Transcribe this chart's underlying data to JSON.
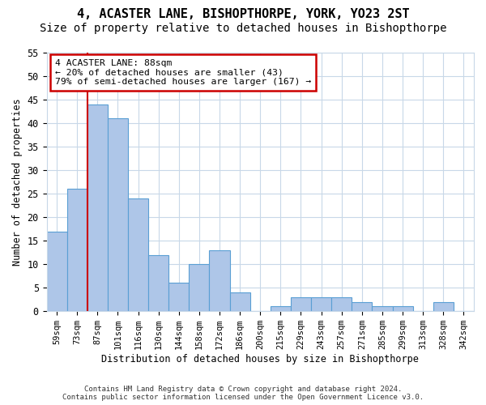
{
  "title": "4, ACASTER LANE, BISHOPTHORPE, YORK, YO23 2ST",
  "subtitle": "Size of property relative to detached houses in Bishopthorpe",
  "xlabel": "Distribution of detached houses by size in Bishopthorpe",
  "ylabel": "Number of detached properties",
  "footer1": "Contains HM Land Registry data © Crown copyright and database right 2024.",
  "footer2": "Contains public sector information licensed under the Open Government Licence v3.0.",
  "categories": [
    "59sqm",
    "73sqm",
    "87sqm",
    "101sqm",
    "116sqm",
    "130sqm",
    "144sqm",
    "158sqm",
    "172sqm",
    "186sqm",
    "200sqm",
    "215sqm",
    "229sqm",
    "243sqm",
    "257sqm",
    "271sqm",
    "285sqm",
    "299sqm",
    "313sqm",
    "328sqm",
    "342sqm"
  ],
  "values": [
    17,
    26,
    44,
    41,
    24,
    12,
    6,
    10,
    13,
    4,
    0,
    1,
    3,
    3,
    3,
    2,
    1,
    1,
    0,
    2,
    0
  ],
  "bar_color": "#aec6e8",
  "bar_edge_color": "#5a9fd4",
  "property_line_label": "4 ACASTER LANE: 88sqm",
  "annotation_line1": "← 20% of detached houses are smaller (43)",
  "annotation_line2": "79% of semi-detached houses are larger (167) →",
  "annotation_box_color": "#ffffff",
  "annotation_box_edge": "#cc0000",
  "line_color": "#cc0000",
  "line_bar_index": 2,
  "ylim": [
    0,
    55
  ],
  "yticks": [
    0,
    5,
    10,
    15,
    20,
    25,
    30,
    35,
    40,
    45,
    50,
    55
  ],
  "background_color": "#ffffff",
  "grid_color": "#c8d8e8",
  "title_fontsize": 11,
  "subtitle_fontsize": 10
}
